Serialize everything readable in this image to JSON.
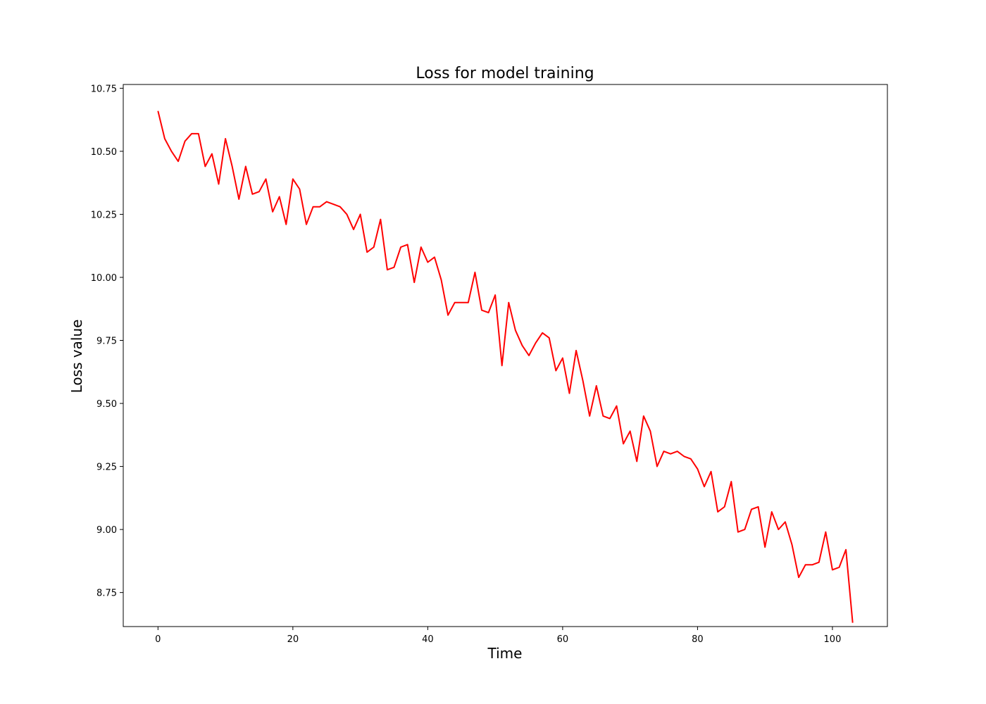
{
  "chart_data": {
    "type": "line",
    "title": "Loss for model training",
    "xlabel": "Time",
    "ylabel": "Loss value",
    "xlim": [
      -5.15,
      108.15
    ],
    "ylim": [
      8.615,
      10.765
    ],
    "xticks": [
      0,
      20,
      40,
      60,
      80,
      100
    ],
    "yticks": [
      8.75,
      9.0,
      9.25,
      9.5,
      9.75,
      10.0,
      10.25,
      10.5,
      10.75
    ],
    "xtick_labels": [
      "0",
      "20",
      "40",
      "60",
      "80",
      "100"
    ],
    "ytick_labels": [
      "8.75",
      "9.00",
      "9.25",
      "9.50",
      "9.75",
      "10.00",
      "10.25",
      "10.50",
      "10.75"
    ],
    "grid": false,
    "legend": "none",
    "series": [
      {
        "color": "#ff0000",
        "x": [
          0,
          1,
          2,
          3,
          4,
          5,
          6,
          7,
          8,
          9,
          10,
          11,
          12,
          13,
          14,
          15,
          16,
          17,
          18,
          19,
          20,
          21,
          22,
          23,
          24,
          25,
          26,
          27,
          28,
          29,
          30,
          31,
          32,
          33,
          34,
          35,
          36,
          37,
          38,
          39,
          40,
          41,
          42,
          43,
          44,
          45,
          46,
          47,
          48,
          49,
          50,
          51,
          52,
          53,
          54,
          55,
          56,
          57,
          58,
          59,
          60,
          61,
          62,
          63,
          64,
          65,
          66,
          67,
          68,
          69,
          70,
          71,
          72,
          73,
          74,
          75,
          76,
          77,
          78,
          79,
          80,
          81,
          82,
          83,
          84,
          85,
          86,
          87,
          88,
          89,
          90,
          91,
          92,
          93,
          94,
          95,
          96,
          97,
          98,
          99,
          100,
          101,
          102,
          103
        ],
        "y": [
          10.66,
          10.55,
          10.5,
          10.46,
          10.54,
          10.57,
          10.57,
          10.44,
          10.49,
          10.37,
          10.55,
          10.44,
          10.31,
          10.44,
          10.33,
          10.34,
          10.39,
          10.26,
          10.32,
          10.21,
          10.39,
          10.35,
          10.21,
          10.28,
          10.28,
          10.3,
          10.29,
          10.28,
          10.25,
          10.19,
          10.25,
          10.1,
          10.12,
          10.23,
          10.03,
          10.04,
          10.12,
          10.13,
          9.98,
          10.12,
          10.06,
          10.08,
          9.99,
          9.85,
          9.9,
          9.9,
          9.9,
          10.02,
          9.87,
          9.86,
          9.93,
          9.65,
          9.9,
          9.79,
          9.73,
          9.69,
          9.74,
          9.78,
          9.76,
          9.63,
          9.68,
          9.54,
          9.71,
          9.59,
          9.45,
          9.57,
          9.45,
          9.44,
          9.49,
          9.34,
          9.39,
          9.27,
          9.45,
          9.39,
          9.25,
          9.31,
          9.3,
          9.31,
          9.29,
          9.28,
          9.24,
          9.17,
          9.23,
          9.07,
          9.09,
          9.19,
          8.99,
          9.0,
          9.08,
          9.09,
          8.93,
          9.07,
          9.0,
          9.03,
          8.94,
          8.81,
          8.86,
          8.86,
          8.87,
          8.99,
          8.84,
          8.85,
          8.92,
          8.63
        ]
      }
    ]
  }
}
